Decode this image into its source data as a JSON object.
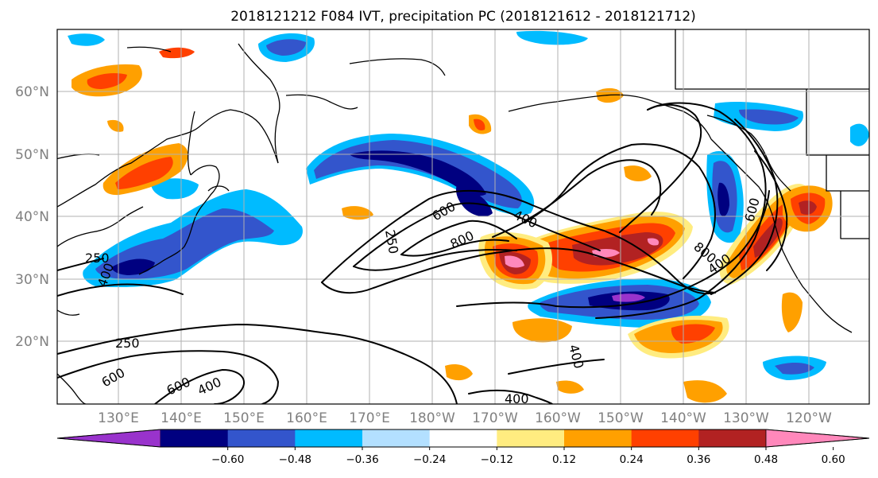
{
  "title": "2018121212 F084 IVT, precipitation PC (2018121612 - 2018121712)",
  "lat_labels": [
    "60°N",
    "50°N",
    "40°N",
    "30°N",
    "20°N"
  ],
  "lon_labels": [
    "130°E",
    "140°E",
    "150°E",
    "160°E",
    "170°E",
    "180°W",
    "170°W",
    "160°W",
    "150°W",
    "140°W",
    "130°W",
    "120°W"
  ],
  "colorbar": {
    "ticks": [
      "−0.60",
      "−0.48",
      "−0.36",
      "−0.24",
      "−0.12",
      "0.12",
      "0.24",
      "0.36",
      "0.48",
      "0.60"
    ],
    "colors": [
      "#9933cc",
      "#000080",
      "#3355cc",
      "#00bbff",
      "#b3e0ff",
      "#ffffff",
      "#ffec80",
      "#ffa000",
      "#ff4000",
      "#b22222",
      "#ff88bb"
    ]
  },
  "contour_labels": {
    "l250_left": "250",
    "l400_left": "400",
    "l250_south": "250",
    "l600_south": "600",
    "l600_south2": "600",
    "l400_south": "400",
    "l250_center": "250",
    "l600_center": "600",
    "l800_center": "800",
    "l400_center": "400",
    "l600_east": "600",
    "l800_east": "800",
    "l400_east": "400",
    "l400_bottom": "400",
    "l400_hawaii": "400"
  }
}
